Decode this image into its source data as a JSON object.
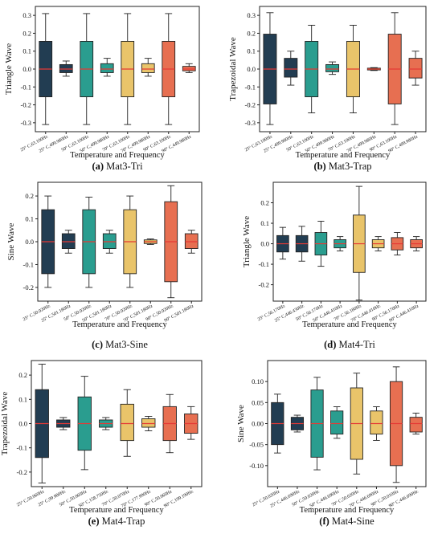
{
  "colors": {
    "navy": "#223d52",
    "teal": "#2a9d8f",
    "yellow": "#e9c46a",
    "orange": "#e76f51",
    "median": "#e53935",
    "frame": "#222222"
  },
  "chart_data": [
    {
      "type": "box",
      "caption_letter": "(a)",
      "caption_text": " Mat3-Tri",
      "xlabel": "Temperature and Frequency",
      "ylabel": "Triangle Wave",
      "ylim": [
        -0.35,
        0.35
      ],
      "yticks": [
        -0.3,
        -0.2,
        -0.1,
        0,
        0.1,
        0.2,
        0.3
      ],
      "ytick_labels": [
        "-0.3",
        "-0.2",
        "-0.1",
        "0.0",
        "0.1",
        "0.2",
        "0.3"
      ],
      "categories": [
        "25° C,63.100Hz",
        "25° C,499.980Hz",
        "50° C,63.100Hz",
        "50° C,499.980Hz",
        "70° C,63.100Hz",
        "70° C,499.980Hz",
        "90° C,63.100Hz",
        "90° C,449.980Hz"
      ],
      "boxes": [
        {
          "min": -0.31,
          "q1": -0.155,
          "median": 0.0,
          "q3": 0.155,
          "max": 0.31
        },
        {
          "min": -0.04,
          "q1": -0.02,
          "median": 0.0,
          "q3": 0.025,
          "max": 0.045
        },
        {
          "min": -0.31,
          "q1": -0.155,
          "median": 0.0,
          "q3": 0.155,
          "max": 0.31
        },
        {
          "min": -0.04,
          "q1": -0.02,
          "median": 0.0,
          "q3": 0.03,
          "max": 0.06
        },
        {
          "min": -0.31,
          "q1": -0.155,
          "median": 0.0,
          "q3": 0.155,
          "max": 0.31
        },
        {
          "min": -0.04,
          "q1": -0.02,
          "median": 0.0,
          "q3": 0.03,
          "max": 0.06
        },
        {
          "min": -0.31,
          "q1": -0.155,
          "median": 0.0,
          "q3": 0.155,
          "max": 0.31
        },
        {
          "min": -0.02,
          "q1": -0.01,
          "median": 0.0,
          "q3": 0.015,
          "max": 0.03
        }
      ]
    },
    {
      "type": "box",
      "caption_letter": "(b)",
      "caption_text": " Mat3-Trap",
      "xlabel": "Temperature and Frequency",
      "ylabel": "Trapezoidal Wave",
      "ylim": [
        -0.35,
        0.35
      ],
      "yticks": [
        -0.3,
        -0.2,
        -0.1,
        0,
        0.1,
        0.2,
        0.3
      ],
      "ytick_labels": [
        "-0.3",
        "-0.2",
        "-0.1",
        "0.0",
        "0.1",
        "0.2",
        "0.3"
      ],
      "categories": [
        "25° C,63.100Hz",
        "25° C,499.980Hz",
        "50° C,63.100Hz",
        "50° C,499.980Hz",
        "70° C,63.100Hz",
        "70° C,499.980Hz",
        "90° C,63.100Hz",
        "90° C,499.980Hz"
      ],
      "boxes": [
        {
          "min": -0.31,
          "q1": -0.195,
          "median": 0.0,
          "q3": 0.195,
          "max": 0.315
        },
        {
          "min": -0.09,
          "q1": -0.045,
          "median": 0.0,
          "q3": 0.06,
          "max": 0.1
        },
        {
          "min": -0.245,
          "q1": -0.155,
          "median": 0.0,
          "q3": 0.155,
          "max": 0.245
        },
        {
          "min": -0.03,
          "q1": -0.015,
          "median": 0.0,
          "q3": 0.025,
          "max": 0.04
        },
        {
          "min": -0.245,
          "q1": -0.155,
          "median": 0.0,
          "q3": 0.155,
          "max": 0.245
        },
        {
          "min": -0.008,
          "q1": -0.005,
          "median": 0.0,
          "q3": 0.005,
          "max": 0.008
        },
        {
          "min": -0.31,
          "q1": -0.195,
          "median": 0.0,
          "q3": 0.195,
          "max": 0.315
        },
        {
          "min": -0.09,
          "q1": -0.05,
          "median": 0.0,
          "q3": 0.06,
          "max": 0.1
        }
      ]
    },
    {
      "type": "box",
      "caption_letter": "(c)",
      "caption_text": " Mat3-Sine",
      "xlabel": "Temperature and Frequency",
      "ylabel": "Sine Wave",
      "ylim": [
        -0.26,
        0.26
      ],
      "yticks": [
        -0.2,
        -0.1,
        0,
        0.1,
        0.2
      ],
      "ytick_labels": [
        "-0.2",
        "-0.1",
        "0.0",
        "0.1",
        "0.2"
      ],
      "categories": [
        "25° C,50.020Hz",
        "25° C,501.180Hz",
        "50° C,50.020Hz",
        "50° C,501.180Hz",
        "70° C,50.020Hz",
        "70° C,501.180Hz",
        "90° C,50.020Hz",
        "90° C,501.180Hz"
      ],
      "boxes": [
        {
          "min": -0.2,
          "q1": -0.14,
          "median": 0.0,
          "q3": 0.14,
          "max": 0.2
        },
        {
          "min": -0.05,
          "q1": -0.03,
          "median": 0.0,
          "q3": 0.035,
          "max": 0.05
        },
        {
          "min": -0.2,
          "q1": -0.14,
          "median": 0.0,
          "q3": 0.14,
          "max": 0.195
        },
        {
          "min": -0.05,
          "q1": -0.03,
          "median": 0.0,
          "q3": 0.035,
          "max": 0.05
        },
        {
          "min": -0.2,
          "q1": -0.14,
          "median": 0.0,
          "q3": 0.14,
          "max": 0.2
        },
        {
          "min": -0.012,
          "q1": -0.008,
          "median": 0.0,
          "q3": 0.008,
          "max": 0.012
        },
        {
          "min": -0.245,
          "q1": -0.175,
          "median": 0.0,
          "q3": 0.175,
          "max": 0.245
        },
        {
          "min": -0.05,
          "q1": -0.03,
          "median": 0.0,
          "q3": 0.035,
          "max": 0.05
        }
      ]
    },
    {
      "type": "box",
      "caption_letter": "(d)",
      "caption_text": " Mat4-Tri",
      "xlabel": "Temperature and Frequency",
      "ylabel": "Triangle Wave",
      "ylim": [
        -0.28,
        0.3
      ],
      "yticks": [
        -0.2,
        -0.1,
        0,
        0.1,
        0.2
      ],
      "ytick_labels": [
        "-0.2",
        "-0.1",
        "0.0",
        "0.1",
        "0.2"
      ],
      "categories": [
        "25° C,56.170Hz",
        "25° C,446.430Hz",
        "50° C,56.170Hz",
        "50° C,446.410Hz",
        "70° C,56.180Hz",
        "70° C,446.410Hz",
        "90° C,56.170Hz",
        "90° C,446.410Hz"
      ],
      "boxes": [
        {
          "min": -0.075,
          "q1": -0.04,
          "median": 0.0,
          "q3": 0.04,
          "max": 0.08
        },
        {
          "min": -0.085,
          "q1": -0.04,
          "median": 0.0,
          "q3": 0.04,
          "max": 0.085
        },
        {
          "min": -0.11,
          "q1": -0.055,
          "median": 0.0,
          "q3": 0.055,
          "max": 0.11
        },
        {
          "min": -0.035,
          "q1": -0.02,
          "median": 0.0,
          "q3": 0.02,
          "max": 0.035
        },
        {
          "min": -0.275,
          "q1": -0.14,
          "median": 0.0,
          "q3": 0.14,
          "max": 0.28
        },
        {
          "min": -0.035,
          "q1": -0.02,
          "median": 0.0,
          "q3": 0.02,
          "max": 0.035
        },
        {
          "min": -0.055,
          "q1": -0.03,
          "median": 0.0,
          "q3": 0.03,
          "max": 0.055
        },
        {
          "min": -0.035,
          "q1": -0.02,
          "median": 0.0,
          "q3": 0.02,
          "max": 0.035
        }
      ]
    },
    {
      "type": "box",
      "caption_letter": "(e)",
      "caption_text": " Mat4-Trap",
      "xlabel": "Temperature and Frequency",
      "ylabel": "Trapezoidal Wave",
      "ylim": [
        -0.26,
        0.26
      ],
      "yticks": [
        -0.2,
        -0.1,
        0,
        0.1,
        0.2
      ],
      "ytick_labels": [
        "-0.2",
        "-0.1",
        "0.0",
        "0.1",
        "0.2"
      ],
      "categories": [
        "25° C,50.060Hz",
        "25° C,99.980Hz",
        "50° C,50.060Hz",
        "50° C,158.750Hz",
        "70° C,50.070Hz",
        "70° C,177.990Hz",
        "90° C,50.060Hz",
        "90° C,199.190Hz"
      ],
      "boxes": [
        {
          "min": -0.245,
          "q1": -0.14,
          "median": 0.0,
          "q3": 0.14,
          "max": 0.245
        },
        {
          "min": -0.025,
          "q1": -0.015,
          "median": 0.0,
          "q3": 0.015,
          "max": 0.025
        },
        {
          "min": -0.19,
          "q1": -0.11,
          "median": 0.0,
          "q3": 0.11,
          "max": 0.195
        },
        {
          "min": -0.025,
          "q1": -0.015,
          "median": 0.0,
          "q3": 0.015,
          "max": 0.025
        },
        {
          "min": -0.135,
          "q1": -0.07,
          "median": 0.0,
          "q3": 0.08,
          "max": 0.14
        },
        {
          "min": -0.03,
          "q1": -0.015,
          "median": 0.0,
          "q3": 0.02,
          "max": 0.03
        },
        {
          "min": -0.12,
          "q1": -0.07,
          "median": 0.0,
          "q3": 0.07,
          "max": 0.12
        },
        {
          "min": -0.065,
          "q1": -0.04,
          "median": 0.0,
          "q3": 0.04,
          "max": 0.07
        }
      ]
    },
    {
      "type": "box",
      "caption_letter": "(f)",
      "caption_text": " Mat4-Sine",
      "xlabel": "Temperature and Frequency",
      "ylabel": "Sine Wave",
      "ylim": [
        -0.15,
        0.15
      ],
      "yticks": [
        -0.1,
        -0.05,
        0,
        0.05,
        0.1
      ],
      "ytick_labels": [
        "-0.10",
        "-0.05",
        "0.00",
        "0.05",
        "0.10"
      ],
      "categories": [
        "25° C,50.020Hz",
        "25° C,446.690Hz",
        "50° C,50.020Hz",
        "50° C,446.690Hz",
        "70° C,50.020Hz",
        "70° C,446.690Hz",
        "90° C,50.010Hz",
        "90° C,446.690Hz"
      ],
      "boxes": [
        {
          "min": -0.07,
          "q1": -0.05,
          "median": 0.0,
          "q3": 0.05,
          "max": 0.07
        },
        {
          "min": -0.02,
          "q1": -0.015,
          "median": 0.0,
          "q3": 0.015,
          "max": 0.02
        },
        {
          "min": -0.11,
          "q1": -0.08,
          "median": 0.0,
          "q3": 0.08,
          "max": 0.11
        },
        {
          "min": -0.035,
          "q1": -0.025,
          "median": 0.0,
          "q3": 0.03,
          "max": 0.04
        },
        {
          "min": -0.12,
          "q1": -0.085,
          "median": 0.0,
          "q3": 0.085,
          "max": 0.12
        },
        {
          "min": -0.04,
          "q1": -0.025,
          "median": 0.0,
          "q3": 0.03,
          "max": 0.04
        },
        {
          "min": -0.14,
          "q1": -0.1,
          "median": 0.0,
          "q3": 0.1,
          "max": 0.135
        },
        {
          "min": -0.025,
          "q1": -0.02,
          "median": 0.0,
          "q3": 0.015,
          "max": 0.025
        }
      ]
    }
  ]
}
